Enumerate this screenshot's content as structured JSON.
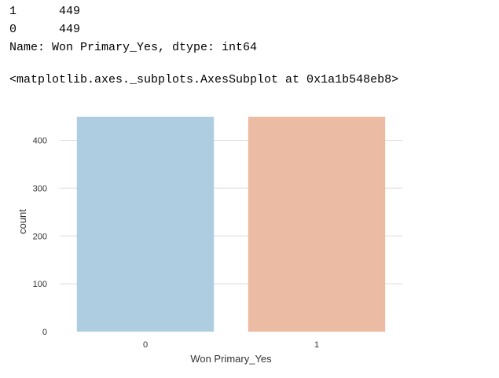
{
  "output": {
    "lines": [
      "1      449",
      "0      449",
      "Name: Won Primary_Yes, dtype: int64"
    ],
    "repr": "<matplotlib.axes._subplots.AxesSubplot at 0x1a1b548eb8>"
  },
  "chart_data": {
    "type": "bar",
    "categories": [
      "0",
      "1"
    ],
    "values": [
      449,
      449
    ],
    "colors": [
      "#afcde1",
      "#ebbba3"
    ],
    "title": "",
    "xlabel": "Won Primary_Yes",
    "ylabel": "count",
    "ylim": [
      0,
      460
    ],
    "yticks": [
      0,
      100,
      200,
      300,
      400
    ],
    "grid": "horizontal",
    "gridColor": "#d9d9d9"
  }
}
